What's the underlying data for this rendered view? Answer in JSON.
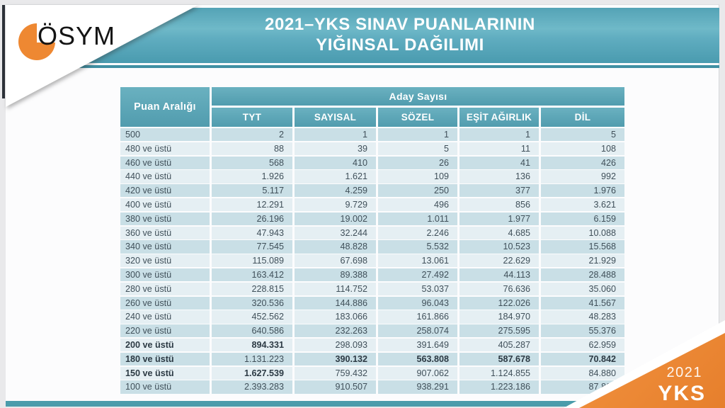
{
  "logo": {
    "text": "ÖSYM"
  },
  "header": {
    "title_line1": "2021–YKS SINAV PUANLARININ",
    "title_line2": "YIĞINSAL DAĞILIMI"
  },
  "corner": {
    "year": "2021",
    "exam": "YKS"
  },
  "colors": {
    "band_teal": "#56a4b6",
    "header_cell_teal": "#5aa5b6",
    "row_dark": "#c9dfe6",
    "row_light": "#e5eff3",
    "underline_teal": "#4090a3",
    "bottom_bar_teal": "#4a9cab",
    "logo_orange": "#ee8832",
    "corner_orange": "#e98433",
    "text_dark": "#40505a"
  },
  "chart_data": {
    "type": "table",
    "title": "2021–YKS SINAV PUANLARININ YIĞINSAL DAĞILIMI",
    "row_header": "Puan Aralığı",
    "group_header": "Aday Sayısı",
    "columns": [
      "TYT",
      "SAYISAL",
      "SÖZEL",
      "EŞİT AĞIRLIK",
      "DİL"
    ],
    "rows": [
      {
        "label": "500",
        "values": [
          "2",
          "1",
          "1",
          "1",
          "5"
        ]
      },
      {
        "label": "480 ve üstü",
        "values": [
          "88",
          "39",
          "5",
          "11",
          "108"
        ]
      },
      {
        "label": "460 ve üstü",
        "values": [
          "568",
          "410",
          "26",
          "41",
          "426"
        ]
      },
      {
        "label": "440 ve üstü",
        "values": [
          "1.926",
          "1.621",
          "109",
          "136",
          "992"
        ]
      },
      {
        "label": "420 ve üstü",
        "values": [
          "5.117",
          "4.259",
          "250",
          "377",
          "1.976"
        ]
      },
      {
        "label": "400 ve üstü",
        "values": [
          "12.291",
          "9.729",
          "496",
          "856",
          "3.621"
        ]
      },
      {
        "label": "380 ve üstü",
        "values": [
          "26.196",
          "19.002",
          "1.011",
          "1.977",
          "6.159"
        ]
      },
      {
        "label": "360 ve üstü",
        "values": [
          "47.943",
          "32.244",
          "2.246",
          "4.685",
          "10.088"
        ]
      },
      {
        "label": "340 ve üstü",
        "values": [
          "77.545",
          "48.828",
          "5.532",
          "10.523",
          "15.568"
        ]
      },
      {
        "label": "320 ve üstü",
        "values": [
          "115.089",
          "67.698",
          "13.061",
          "22.629",
          "21.929"
        ]
      },
      {
        "label": "300 ve üstü",
        "values": [
          "163.412",
          "89.388",
          "27.492",
          "44.113",
          "28.488"
        ]
      },
      {
        "label": "280 ve üstü",
        "values": [
          "228.815",
          "114.752",
          "53.037",
          "76.636",
          "35.060"
        ]
      },
      {
        "label": "260 ve üstü",
        "values": [
          "320.536",
          "144.886",
          "96.043",
          "122.026",
          "41.567"
        ]
      },
      {
        "label": "240 ve üstü",
        "values": [
          "452.562",
          "183.066",
          "161.866",
          "184.970",
          "48.283"
        ]
      },
      {
        "label": "220 ve üstü",
        "values": [
          "640.586",
          "232.263",
          "258.074",
          "275.595",
          "55.376"
        ]
      },
      {
        "label": "200 ve üstü",
        "values": [
          "894.331",
          "298.093",
          "391.649",
          "405.287",
          "62.959"
        ],
        "bold_label": true,
        "bold_values": [
          0
        ]
      },
      {
        "label": "180 ve üstü",
        "values": [
          "1.131.223",
          "390.132",
          "563.808",
          "587.678",
          "70.842"
        ],
        "bold_label": true,
        "bold_values": [
          1,
          2,
          3,
          4
        ]
      },
      {
        "label": "150 ve üstü",
        "values": [
          "1.627.539",
          "759.432",
          "907.062",
          "1.124.855",
          "84.880"
        ],
        "bold_label": true,
        "bold_values": [
          0
        ]
      },
      {
        "label": "100 ve üstü",
        "values": [
          "2.393.283",
          "910.507",
          "938.291",
          "1.223.186",
          "87.804"
        ]
      }
    ]
  }
}
